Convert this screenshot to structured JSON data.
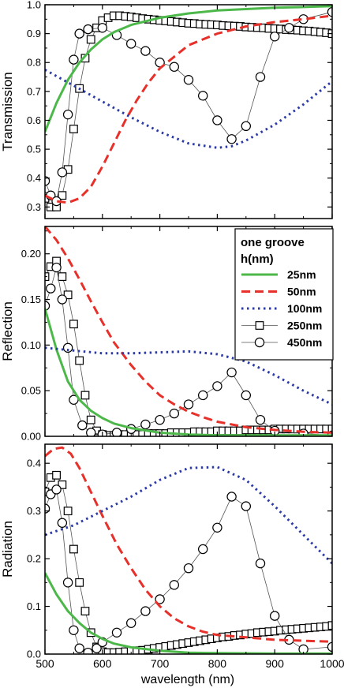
{
  "chart_data": {
    "type": "line",
    "xlabel": "wavelength (nm)",
    "xlim": [
      500,
      1000
    ],
    "xticks": [
      500,
      600,
      700,
      800,
      900,
      1000
    ],
    "colors": {
      "h25": "#4db84a",
      "h50": "#e8302a",
      "h100": "#2b3aa6",
      "marker": "#000000"
    },
    "legend": {
      "title_line1": "one groove",
      "title_line2": "h(nm)",
      "placement": "top-right of middle panel",
      "entries": [
        "25nm",
        "50nm",
        "100nm",
        "250nm",
        "450nm"
      ]
    },
    "panels": [
      {
        "ylabel": "Transmission",
        "ylim": [
          0.26,
          1.0
        ],
        "yticks": [
          0.3,
          0.4,
          0.5,
          0.6,
          0.7,
          0.8,
          0.9,
          1.0
        ],
        "series": [
          {
            "name": "25nm",
            "style": "solid",
            "x": [
              500,
              520,
              540,
              560,
              580,
              600,
              620,
              650,
              700,
              750,
              800,
              850,
              900,
              950,
              1000
            ],
            "y": [
              0.56,
              0.66,
              0.74,
              0.8,
              0.845,
              0.88,
              0.905,
              0.93,
              0.955,
              0.97,
              0.98,
              0.985,
              0.99,
              0.992,
              0.995
            ]
          },
          {
            "name": "50nm",
            "style": "dashed",
            "x": [
              500,
              520,
              540,
              560,
              580,
              600,
              620,
              640,
              660,
              680,
              700,
              725,
              750,
              775,
              800,
              850,
              900,
              950,
              1000
            ],
            "y": [
              0.34,
              0.32,
              0.315,
              0.33,
              0.37,
              0.44,
              0.52,
              0.6,
              0.67,
              0.73,
              0.78,
              0.82,
              0.86,
              0.88,
              0.9,
              0.925,
              0.94,
              0.95,
              0.962
            ]
          },
          {
            "name": "100nm",
            "style": "dotted",
            "x": [
              500,
              550,
              600,
              650,
              700,
              750,
              800,
              825,
              850,
              900,
              950,
              1000
            ],
            "y": [
              0.775,
              0.72,
              0.665,
              0.61,
              0.56,
              0.52,
              0.505,
              0.51,
              0.53,
              0.585,
              0.655,
              0.735
            ]
          },
          {
            "name": "250nm",
            "style": "square",
            "x": [
              500,
              510,
              520,
              530,
              540,
              550,
              560,
              570,
              580,
              590,
              600,
              610,
              620,
              630,
              640,
              650,
              660,
              670,
              680,
              690,
              700,
              710,
              720,
              730,
              740,
              750,
              760,
              770,
              780,
              790,
              800,
              810,
              820,
              830,
              840,
              850,
              860,
              870,
              880,
              890,
              900,
              910,
              920,
              930,
              940,
              950,
              960,
              970,
              980,
              990,
              1000
            ],
            "y": [
              0.33,
              0.3,
              0.3,
              0.34,
              0.43,
              0.57,
              0.71,
              0.815,
              0.88,
              0.92,
              0.945,
              0.955,
              0.962,
              0.962,
              0.96,
              0.958,
              0.955,
              0.952,
              0.95,
              0.948,
              0.946,
              0.944,
              0.942,
              0.94,
              0.938,
              0.936,
              0.935,
              0.933,
              0.932,
              0.931,
              0.93,
              0.928,
              0.927,
              0.926,
              0.925,
              0.923,
              0.922,
              0.921,
              0.92,
              0.918,
              0.917,
              0.916,
              0.914,
              0.913,
              0.912,
              0.91,
              0.909,
              0.907,
              0.905,
              0.903,
              0.9
            ]
          },
          {
            "name": "450nm",
            "style": "circle",
            "x": [
              500,
              510,
              520,
              530,
              540,
              550,
              560,
              575,
              600,
              625,
              650,
              675,
              700,
              725,
              750,
              775,
              800,
              825,
              850,
              875,
              900,
              925,
              950,
              1000
            ],
            "y": [
              0.39,
              0.34,
              0.32,
              0.42,
              0.62,
              0.81,
              0.9,
              0.915,
              0.92,
              0.895,
              0.865,
              0.84,
              0.8,
              0.785,
              0.74,
              0.685,
              0.6,
              0.535,
              0.58,
              0.75,
              0.89,
              0.92,
              0.95,
              0.975
            ]
          }
        ]
      },
      {
        "ylabel": "Reflection",
        "ylim": [
          0.0,
          0.23
        ],
        "yticks": [
          0.0,
          0.05,
          0.1,
          0.15,
          0.2
        ],
        "series": [
          {
            "name": "25nm",
            "style": "solid",
            "x": [
              500,
              520,
              540,
              560,
              580,
              600,
              620,
              650,
              700,
              750,
              800,
              900,
              1000
            ],
            "y": [
              0.14,
              0.095,
              0.06,
              0.04,
              0.028,
              0.02,
              0.014,
              0.009,
              0.004,
              0.002,
              0.001,
              0.001,
              0.001
            ]
          },
          {
            "name": "50nm",
            "style": "dashed",
            "x": [
              500,
              520,
              540,
              560,
              580,
              600,
              620,
              650,
              675,
              700,
              725,
              750,
              775,
              800,
              850,
              900,
              950,
              1000
            ],
            "y": [
              0.23,
              0.215,
              0.195,
              0.172,
              0.148,
              0.125,
              0.103,
              0.078,
              0.06,
              0.045,
              0.035,
              0.027,
              0.021,
              0.016,
              0.01,
              0.007,
              0.005,
              0.004
            ]
          },
          {
            "name": "100nm",
            "style": "dotted",
            "x": [
              500,
              550,
              600,
              650,
              700,
              750,
              800,
              850,
              900,
              950,
              1000
            ],
            "y": [
              0.097,
              0.094,
              0.091,
              0.091,
              0.092,
              0.093,
              0.09,
              0.082,
              0.067,
              0.05,
              0.035
            ]
          },
          {
            "name": "250nm",
            "style": "square",
            "x": [
              500,
              510,
              520,
              530,
              540,
              550,
              560,
              570,
              580,
              590,
              600,
              610,
              620,
              630,
              640,
              650,
              660,
              670,
              680,
              690,
              700,
              710,
              720,
              730,
              740,
              750,
              760,
              770,
              780,
              790,
              800,
              810,
              820,
              830,
              840,
              850,
              860,
              870,
              880,
              890,
              900,
              910,
              920,
              930,
              940,
              950,
              960,
              970,
              980,
              990,
              1000
            ],
            "y": [
              0.175,
              0.186,
              0.192,
              0.175,
              0.155,
              0.123,
              0.083,
              0.045,
              0.018,
              0.006,
              0.002,
              0.001,
              0.001,
              0.001,
              0.002,
              0.002,
              0.002,
              0.002,
              0.003,
              0.003,
              0.003,
              0.003,
              0.004,
              0.004,
              0.004,
              0.004,
              0.005,
              0.005,
              0.005,
              0.005,
              0.006,
              0.006,
              0.006,
              0.006,
              0.006,
              0.007,
              0.007,
              0.007,
              0.007,
              0.007,
              0.008,
              0.008,
              0.008,
              0.008,
              0.008,
              0.008,
              0.008,
              0.008,
              0.008,
              0.008,
              0.008
            ]
          },
          {
            "name": "450nm",
            "style": "circle",
            "x": [
              500,
              510,
              520,
              530,
              540,
              550,
              565,
              580,
              600,
              625,
              650,
              675,
              700,
              725,
              750,
              775,
              800,
              825,
              850,
              875,
              900,
              950,
              1000
            ],
            "y": [
              0.143,
              0.162,
              0.185,
              0.15,
              0.097,
              0.04,
              0.012,
              0.004,
              0.002,
              0.004,
              0.008,
              0.013,
              0.018,
              0.025,
              0.035,
              0.045,
              0.055,
              0.07,
              0.045,
              0.018,
              0.006,
              0.003,
              0.001
            ]
          }
        ]
      },
      {
        "ylabel": "Radiation",
        "ylim": [
          0.0,
          0.44
        ],
        "yticks": [
          0.0,
          0.1,
          0.2,
          0.3,
          0.4
        ],
        "series": [
          {
            "name": "25nm",
            "style": "solid",
            "x": [
              500,
              520,
              540,
              560,
              580,
              600,
              620,
              650,
              700,
              750,
              800,
              900,
              1000
            ],
            "y": [
              0.17,
              0.125,
              0.09,
              0.065,
              0.045,
              0.032,
              0.022,
              0.014,
              0.007,
              0.003,
              0.002,
              0.001,
              0.001
            ]
          },
          {
            "name": "50nm",
            "style": "dashed",
            "x": [
              500,
              515,
              530,
              545,
              560,
              580,
              600,
              625,
              650,
              675,
              700,
              725,
              750,
              775,
              800,
              850,
              900,
              950,
              1000
            ],
            "y": [
              0.415,
              0.43,
              0.433,
              0.42,
              0.39,
              0.34,
              0.29,
              0.23,
              0.18,
              0.135,
              0.1,
              0.075,
              0.058,
              0.047,
              0.04,
              0.035,
              0.03,
              0.028,
              0.026
            ]
          },
          {
            "name": "100nm",
            "style": "dotted",
            "x": [
              500,
              550,
              600,
              650,
              700,
              750,
              800,
              850,
              900,
              950,
              1000
            ],
            "y": [
              0.25,
              0.27,
              0.3,
              0.33,
              0.365,
              0.39,
              0.392,
              0.365,
              0.31,
              0.25,
              0.19
            ]
          },
          {
            "name": "250nm",
            "style": "square",
            "x": [
              500,
              510,
              520,
              530,
              540,
              550,
              560,
              570,
              580,
              590,
              600,
              610,
              620,
              630,
              640,
              650,
              660,
              670,
              680,
              690,
              700,
              710,
              720,
              730,
              740,
              750,
              760,
              770,
              780,
              790,
              800,
              810,
              820,
              830,
              840,
              850,
              860,
              870,
              880,
              890,
              900,
              910,
              920,
              930,
              940,
              950,
              960,
              970,
              980,
              990,
              1000
            ],
            "y": [
              0.34,
              0.37,
              0.375,
              0.355,
              0.3,
              0.22,
              0.15,
              0.09,
              0.045,
              0.015,
              0.005,
              0.003,
              0.003,
              0.004,
              0.005,
              0.006,
              0.007,
              0.008,
              0.01,
              0.012,
              0.014,
              0.016,
              0.018,
              0.02,
              0.022,
              0.024,
              0.026,
              0.028,
              0.03,
              0.032,
              0.034,
              0.036,
              0.037,
              0.039,
              0.04,
              0.042,
              0.043,
              0.045,
              0.046,
              0.047,
              0.048,
              0.05,
              0.051,
              0.052,
              0.053,
              0.054,
              0.055,
              0.056,
              0.057,
              0.058,
              0.06
            ]
          },
          {
            "name": "450nm",
            "style": "circle",
            "x": [
              500,
              510,
              520,
              530,
              540,
              550,
              560,
              575,
              590,
              600,
              625,
              650,
              675,
              700,
              725,
              750,
              775,
              800,
              825,
              850,
              875,
              900,
              925,
              950,
              1000
            ],
            "y": [
              0.305,
              0.335,
              0.345,
              0.275,
              0.15,
              0.05,
              0.012,
              0.003,
              0.012,
              0.025,
              0.045,
              0.065,
              0.09,
              0.115,
              0.145,
              0.18,
              0.22,
              0.265,
              0.33,
              0.31,
              0.19,
              0.08,
              0.03,
              0.01,
              0.015
            ]
          }
        ]
      }
    ]
  }
}
